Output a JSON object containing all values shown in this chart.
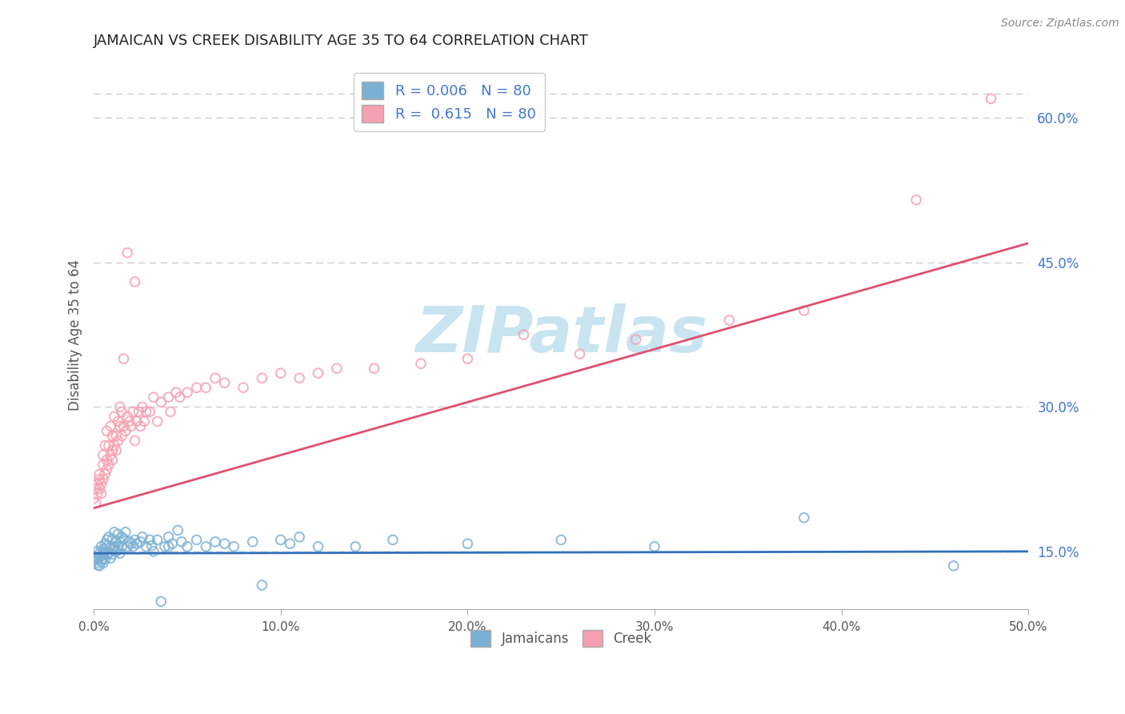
{
  "title": "JAMAICAN VS CREEK DISABILITY AGE 35 TO 64 CORRELATION CHART",
  "source": "Source: ZipAtlas.com",
  "ylabel": "Disability Age 35 to 64",
  "xlim": [
    0.0,
    0.5
  ],
  "ylim": [
    0.09,
    0.66
  ],
  "xticks": [
    0.0,
    0.1,
    0.2,
    0.3,
    0.4,
    0.5
  ],
  "xticklabels": [
    "0.0%",
    "10.0%",
    "20.0%",
    "30.0%",
    "40.0%",
    "50.0%"
  ],
  "yticks_right": [
    0.15,
    0.3,
    0.45,
    0.6
  ],
  "yticklabels_right": [
    "15.0%",
    "30.0%",
    "45.0%",
    "60.0%"
  ],
  "grid_color": "#cccccc",
  "background_color": "#ffffff",
  "jamaican_color": "#7bafd4",
  "jamaican_edge_color": "#5090bb",
  "creek_color": "#f4a0b0",
  "creek_edge_color": "#e06080",
  "trend_jamaican_color": "#3070bb",
  "trend_creek_color": "#e05070",
  "jamaican_R": 0.006,
  "creek_R": 0.615,
  "N": 80,
  "watermark_text": "ZIPatlas",
  "watermark_color": "#c8e4f0",
  "jamaican_scatter": [
    [
      0.0,
      0.14
    ],
    [
      0.0,
      0.145
    ],
    [
      0.001,
      0.142
    ],
    [
      0.001,
      0.138
    ],
    [
      0.002,
      0.143
    ],
    [
      0.002,
      0.136
    ],
    [
      0.002,
      0.15
    ],
    [
      0.003,
      0.144
    ],
    [
      0.003,
      0.135
    ],
    [
      0.003,
      0.148
    ],
    [
      0.004,
      0.14
    ],
    [
      0.004,
      0.155
    ],
    [
      0.005,
      0.143
    ],
    [
      0.005,
      0.138
    ],
    [
      0.005,
      0.152
    ],
    [
      0.005,
      0.146
    ],
    [
      0.006,
      0.142
    ],
    [
      0.006,
      0.15
    ],
    [
      0.006,
      0.158
    ],
    [
      0.007,
      0.147
    ],
    [
      0.007,
      0.162
    ],
    [
      0.007,
      0.156
    ],
    [
      0.008,
      0.148
    ],
    [
      0.008,
      0.165
    ],
    [
      0.009,
      0.155
    ],
    [
      0.009,
      0.143
    ],
    [
      0.01,
      0.152
    ],
    [
      0.01,
      0.163
    ],
    [
      0.01,
      0.147
    ],
    [
      0.011,
      0.17
    ],
    [
      0.011,
      0.155
    ],
    [
      0.012,
      0.16
    ],
    [
      0.012,
      0.15
    ],
    [
      0.013,
      0.155
    ],
    [
      0.013,
      0.168
    ],
    [
      0.014,
      0.16
    ],
    [
      0.014,
      0.148
    ],
    [
      0.015,
      0.165
    ],
    [
      0.015,
      0.155
    ],
    [
      0.016,
      0.163
    ],
    [
      0.017,
      0.17
    ],
    [
      0.018,
      0.155
    ],
    [
      0.019,
      0.16
    ],
    [
      0.02,
      0.158
    ],
    [
      0.021,
      0.155
    ],
    [
      0.022,
      0.162
    ],
    [
      0.023,
      0.158
    ],
    [
      0.025,
      0.16
    ],
    [
      0.026,
      0.165
    ],
    [
      0.028,
      0.155
    ],
    [
      0.03,
      0.162
    ],
    [
      0.031,
      0.156
    ],
    [
      0.032,
      0.15
    ],
    [
      0.034,
      0.162
    ],
    [
      0.036,
      0.098
    ],
    [
      0.038,
      0.155
    ],
    [
      0.04,
      0.165
    ],
    [
      0.04,
      0.155
    ],
    [
      0.042,
      0.158
    ],
    [
      0.045,
      0.172
    ],
    [
      0.047,
      0.16
    ],
    [
      0.05,
      0.155
    ],
    [
      0.055,
      0.162
    ],
    [
      0.06,
      0.155
    ],
    [
      0.065,
      0.16
    ],
    [
      0.07,
      0.158
    ],
    [
      0.075,
      0.155
    ],
    [
      0.085,
      0.16
    ],
    [
      0.09,
      0.115
    ],
    [
      0.1,
      0.162
    ],
    [
      0.105,
      0.158
    ],
    [
      0.11,
      0.165
    ],
    [
      0.12,
      0.155
    ],
    [
      0.14,
      0.155
    ],
    [
      0.16,
      0.162
    ],
    [
      0.2,
      0.158
    ],
    [
      0.25,
      0.162
    ],
    [
      0.3,
      0.155
    ],
    [
      0.38,
      0.185
    ],
    [
      0.46,
      0.135
    ]
  ],
  "creek_scatter": [
    [
      0.0,
      0.205
    ],
    [
      0.001,
      0.215
    ],
    [
      0.001,
      0.2
    ],
    [
      0.002,
      0.21
    ],
    [
      0.002,
      0.22
    ],
    [
      0.003,
      0.215
    ],
    [
      0.003,
      0.225
    ],
    [
      0.003,
      0.23
    ],
    [
      0.004,
      0.22
    ],
    [
      0.004,
      0.21
    ],
    [
      0.005,
      0.225
    ],
    [
      0.005,
      0.24
    ],
    [
      0.005,
      0.25
    ],
    [
      0.006,
      0.23
    ],
    [
      0.006,
      0.26
    ],
    [
      0.007,
      0.235
    ],
    [
      0.007,
      0.245
    ],
    [
      0.007,
      0.275
    ],
    [
      0.008,
      0.24
    ],
    [
      0.008,
      0.26
    ],
    [
      0.009,
      0.25
    ],
    [
      0.009,
      0.28
    ],
    [
      0.01,
      0.245
    ],
    [
      0.01,
      0.255
    ],
    [
      0.01,
      0.27
    ],
    [
      0.011,
      0.26
    ],
    [
      0.011,
      0.29
    ],
    [
      0.012,
      0.255
    ],
    [
      0.012,
      0.27
    ],
    [
      0.013,
      0.265
    ],
    [
      0.013,
      0.285
    ],
    [
      0.014,
      0.28
    ],
    [
      0.014,
      0.3
    ],
    [
      0.015,
      0.27
    ],
    [
      0.015,
      0.295
    ],
    [
      0.016,
      0.28
    ],
    [
      0.016,
      0.35
    ],
    [
      0.017,
      0.275
    ],
    [
      0.018,
      0.29
    ],
    [
      0.018,
      0.46
    ],
    [
      0.019,
      0.285
    ],
    [
      0.02,
      0.28
    ],
    [
      0.021,
      0.295
    ],
    [
      0.022,
      0.265
    ],
    [
      0.022,
      0.43
    ],
    [
      0.023,
      0.285
    ],
    [
      0.024,
      0.295
    ],
    [
      0.025,
      0.28
    ],
    [
      0.026,
      0.3
    ],
    [
      0.027,
      0.285
    ],
    [
      0.028,
      0.295
    ],
    [
      0.03,
      0.295
    ],
    [
      0.032,
      0.31
    ],
    [
      0.034,
      0.285
    ],
    [
      0.036,
      0.305
    ],
    [
      0.04,
      0.31
    ],
    [
      0.041,
      0.295
    ],
    [
      0.044,
      0.315
    ],
    [
      0.046,
      0.31
    ],
    [
      0.05,
      0.315
    ],
    [
      0.055,
      0.32
    ],
    [
      0.06,
      0.32
    ],
    [
      0.065,
      0.33
    ],
    [
      0.07,
      0.325
    ],
    [
      0.08,
      0.32
    ],
    [
      0.09,
      0.33
    ],
    [
      0.1,
      0.335
    ],
    [
      0.11,
      0.33
    ],
    [
      0.12,
      0.335
    ],
    [
      0.13,
      0.34
    ],
    [
      0.15,
      0.34
    ],
    [
      0.175,
      0.345
    ],
    [
      0.2,
      0.35
    ],
    [
      0.23,
      0.375
    ],
    [
      0.26,
      0.355
    ],
    [
      0.29,
      0.37
    ],
    [
      0.34,
      0.39
    ],
    [
      0.38,
      0.4
    ],
    [
      0.44,
      0.515
    ],
    [
      0.48,
      0.62
    ]
  ],
  "creek_trend_x": [
    0.0,
    0.5
  ],
  "creek_trend_y": [
    0.195,
    0.47
  ],
  "jamaican_trend_x": [
    0.0,
    0.5
  ],
  "jamaican_trend_y": [
    0.148,
    0.15
  ]
}
